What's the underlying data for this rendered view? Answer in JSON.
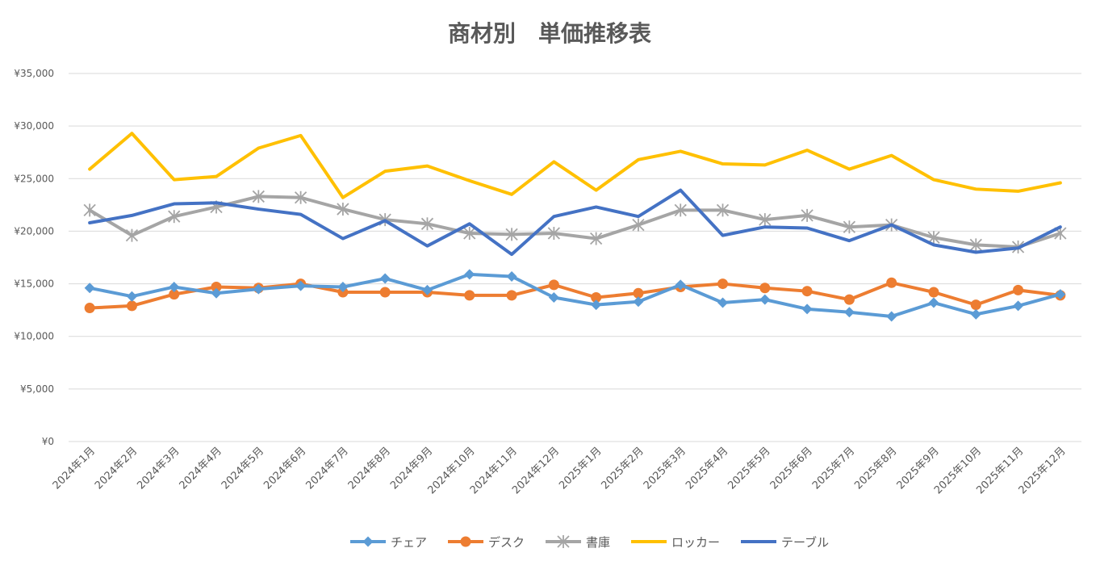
{
  "chart_data": {
    "type": "line",
    "title": "商材別　単価推移表",
    "xlabel": "",
    "ylabel": "",
    "ylim": [
      0,
      35000
    ],
    "yticks": [
      0,
      5000,
      10000,
      15000,
      20000,
      25000,
      30000,
      35000
    ],
    "ytick_labels": [
      "¥0",
      "¥5,000",
      "¥10,000",
      "¥15,000",
      "¥20,000",
      "¥25,000",
      "¥30,000",
      "¥35,000"
    ],
    "grid": true,
    "legend_position": "bottom",
    "categories": [
      "2024年1月",
      "2024年2月",
      "2024年3月",
      "2024年4月",
      "2024年5月",
      "2024年6月",
      "2024年7月",
      "2024年8月",
      "2024年9月",
      "2024年10月",
      "2024年11月",
      "2024年12月",
      "2025年1月",
      "2025年2月",
      "2025年3月",
      "2025年4月",
      "2025年5月",
      "2025年6月",
      "2025年7月",
      "2025年8月",
      "2025年9月",
      "2025年10月",
      "2025年11月",
      "2025年12月"
    ],
    "series": [
      {
        "name": "チェア",
        "color": "#5B9BD5",
        "marker": "diamond",
        "values": [
          14600,
          13800,
          14700,
          14100,
          14500,
          14800,
          14700,
          15500,
          14400,
          15900,
          15700,
          13700,
          13000,
          13300,
          14900,
          13200,
          13500,
          12600,
          12300,
          11900,
          13200,
          12100,
          12900,
          14000
        ]
      },
      {
        "name": "デスク",
        "color": "#ED7D31",
        "marker": "circle",
        "values": [
          12700,
          12900,
          14000,
          14700,
          14600,
          15000,
          14200,
          14200,
          14200,
          13900,
          13900,
          14900,
          13700,
          14100,
          14700,
          15000,
          14600,
          14300,
          13500,
          15100,
          14200,
          13000,
          14400,
          13900
        ]
      },
      {
        "name": "書庫",
        "color": "#A5A5A5",
        "marker": "star",
        "values": [
          22000,
          19600,
          21400,
          22300,
          23300,
          23200,
          22100,
          21100,
          20700,
          19800,
          19700,
          19800,
          19300,
          20600,
          22000,
          22000,
          21100,
          21500,
          20400,
          20600,
          19400,
          18700,
          18500,
          19800
        ]
      },
      {
        "name": "ロッカー",
        "color": "#FFC000",
        "marker": "none",
        "values": [
          25900,
          29300,
          24900,
          25200,
          27900,
          29100,
          23200,
          25700,
          26200,
          24800,
          23500,
          26600,
          23900,
          26800,
          27600,
          26400,
          26300,
          27700,
          25900,
          27200,
          24900,
          24000,
          23800,
          24600
        ]
      },
      {
        "name": "テーブル",
        "color": "#4472C4",
        "marker": "none",
        "values": [
          20800,
          21500,
          22600,
          22700,
          22100,
          21600,
          19300,
          21000,
          18600,
          20700,
          17800,
          21400,
          22300,
          21400,
          23900,
          19600,
          20400,
          20300,
          19100,
          20600,
          18700,
          18000,
          18400,
          20400
        ]
      }
    ]
  }
}
